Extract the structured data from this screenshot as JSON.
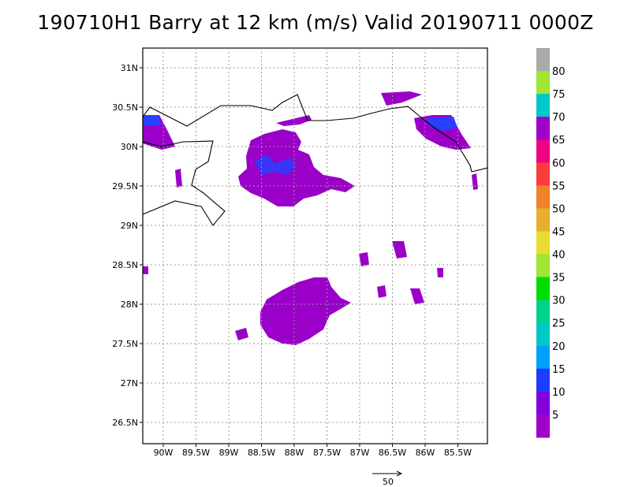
{
  "title": "190710H1 Barry at 12 km (m/s) Valid 20190711 0000Z",
  "map": {
    "lat_labels": [
      "31N",
      "30.5N",
      "30N",
      "29.5N",
      "29N",
      "28.5N",
      "28N",
      "27.5N",
      "27N",
      "26.5N"
    ],
    "lon_labels": [
      "90W",
      "89.5W",
      "89W",
      "88.5W",
      "88W",
      "87.5W",
      "87W",
      "86.5W",
      "86W",
      "85.5W"
    ],
    "grid": true,
    "coastline": true
  },
  "colorbar": {
    "labels": [
      "5",
      "10",
      "15",
      "20",
      "25",
      "30",
      "35",
      "40",
      "45",
      "50",
      "55",
      "60",
      "65",
      "70",
      "75",
      "80"
    ],
    "colors": [
      "#a000c8",
      "#8200dc",
      "#1e3cff",
      "#00a0ff",
      "#00c8c8",
      "#00d28c",
      "#00dc00",
      "#a0e632",
      "#e6dc32",
      "#e6af2d",
      "#f08228",
      "#fa3c3c",
      "#f00082",
      "#a000c8",
      "#00c8c8",
      "#a0e632",
      "#aaaaaa"
    ]
  },
  "reference_vector": {
    "label": "50"
  }
}
